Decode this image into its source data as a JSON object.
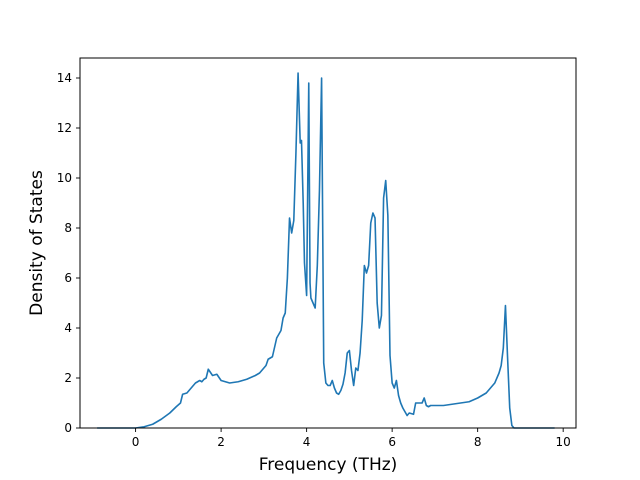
{
  "chart_data": {
    "type": "line",
    "title": "",
    "xlabel": "Frequency (THz)",
    "ylabel": "Density of States",
    "xlim": [
      -1.3,
      10.3
    ],
    "ylim": [
      0,
      14.8
    ],
    "xticks": [
      0,
      2,
      4,
      6,
      8,
      10
    ],
    "yticks": [
      0,
      2,
      4,
      6,
      8,
      10,
      12,
      14
    ],
    "grid": false,
    "legend": "none",
    "line_color": "#1f77b4",
    "series": [
      {
        "x": [
          -0.9,
          0.0,
          0.2,
          0.4,
          0.6,
          0.8,
          0.95,
          1.05,
          1.1,
          1.2,
          1.3,
          1.4,
          1.45,
          1.5,
          1.55,
          1.6,
          1.65,
          1.7,
          1.8,
          1.9,
          2.0,
          2.2,
          2.4,
          2.6,
          2.8,
          2.9,
          3.0,
          3.05,
          3.1,
          3.15,
          3.2,
          3.3,
          3.4,
          3.45,
          3.5,
          3.55,
          3.6,
          3.65,
          3.7,
          3.75,
          3.8,
          3.85,
          3.88,
          3.92,
          3.95,
          4.0,
          4.05,
          4.08,
          4.1,
          4.15,
          4.2,
          4.25,
          4.3,
          4.35,
          4.4,
          4.45,
          4.5,
          4.55,
          4.6,
          4.65,
          4.7,
          4.75,
          4.8,
          4.85,
          4.9,
          4.95,
          5.0,
          5.05,
          5.1,
          5.15,
          5.2,
          5.25,
          5.3,
          5.35,
          5.4,
          5.45,
          5.5,
          5.55,
          5.6,
          5.65,
          5.7,
          5.75,
          5.8,
          5.85,
          5.9,
          5.95,
          6.0,
          6.05,
          6.1,
          6.15,
          6.2,
          6.25,
          6.3,
          6.35,
          6.4,
          6.5,
          6.55,
          6.6,
          6.65,
          6.7,
          6.75,
          6.8,
          6.85,
          6.9,
          7.0,
          7.2,
          7.4,
          7.6,
          7.8,
          8.0,
          8.1,
          8.2,
          8.3,
          8.4,
          8.5,
          8.55,
          8.6,
          8.65,
          8.7,
          8.75,
          8.8,
          8.85,
          8.9,
          8.95,
          9.0,
          9.8
        ],
        "y": [
          0,
          0,
          0.05,
          0.15,
          0.35,
          0.6,
          0.85,
          1.0,
          1.35,
          1.4,
          1.6,
          1.8,
          1.85,
          1.9,
          1.85,
          1.95,
          2.0,
          2.35,
          2.1,
          2.15,
          1.9,
          1.8,
          1.85,
          1.95,
          2.1,
          2.2,
          2.4,
          2.5,
          2.75,
          2.8,
          2.85,
          3.6,
          3.9,
          4.4,
          4.6,
          6.0,
          8.4,
          7.8,
          8.3,
          11.0,
          14.2,
          11.4,
          11.5,
          9.0,
          6.6,
          5.3,
          13.8,
          5.8,
          5.2,
          5.0,
          4.8,
          6.5,
          9.5,
          14.0,
          2.6,
          1.8,
          1.7,
          1.7,
          1.9,
          1.6,
          1.4,
          1.35,
          1.5,
          1.75,
          2.2,
          3.0,
          3.1,
          2.3,
          1.7,
          2.4,
          2.3,
          3.0,
          4.3,
          6.5,
          6.2,
          6.5,
          8.2,
          8.6,
          8.4,
          5.0,
          4.0,
          4.5,
          9.2,
          9.9,
          8.5,
          2.9,
          1.8,
          1.6,
          1.9,
          1.3,
          1.0,
          0.8,
          0.65,
          0.5,
          0.6,
          0.55,
          1.0,
          1.0,
          1.0,
          1.0,
          1.2,
          0.9,
          0.85,
          0.9,
          0.9,
          0.9,
          0.95,
          1.0,
          1.05,
          1.2,
          1.3,
          1.4,
          1.6,
          1.8,
          2.2,
          2.5,
          3.2,
          4.9,
          2.8,
          0.8,
          0.1,
          0,
          0,
          0,
          0,
          0
        ]
      }
    ]
  }
}
